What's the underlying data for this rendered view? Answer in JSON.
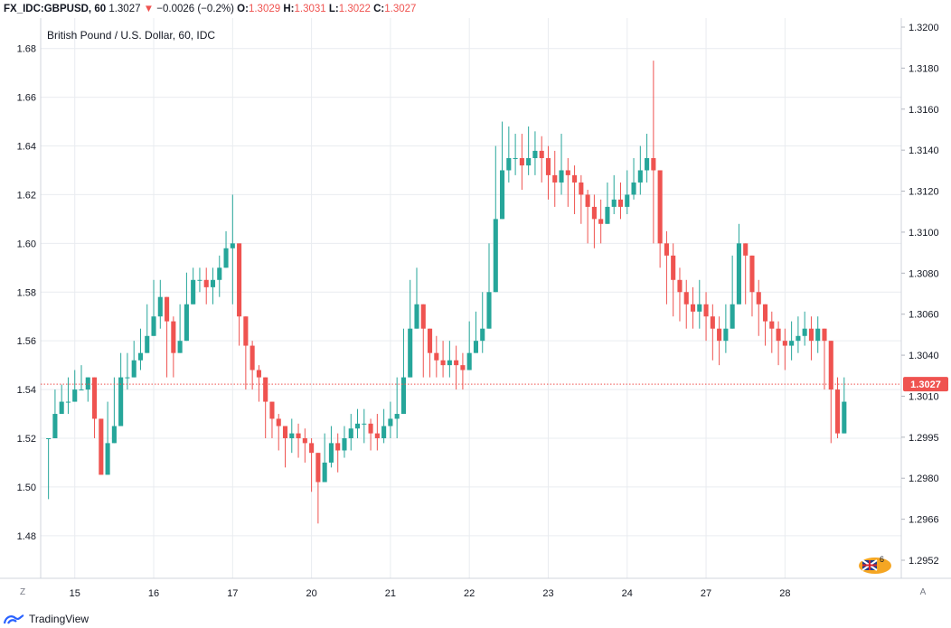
{
  "header": {
    "symbol": "FX_IDC:GBPUSD, 60",
    "last": "1.3027",
    "change": "−0.0026 (−0.2%)",
    "o_label": "O:",
    "o": "1.3029",
    "h_label": "H:",
    "h": "1.3031",
    "l_label": "L:",
    "l": "1.3022",
    "c_label": "C:",
    "c": "1.3027",
    "arrow_icon": "triangle-down"
  },
  "footer": {
    "brand": "TradingView",
    "logo_icon": "tradingview-logo"
  },
  "buttons": {
    "zoom_label": "Z",
    "auto_label": "A"
  },
  "badge": {
    "count": "6",
    "flag_icon": "uk-flag"
  },
  "colors": {
    "up": "#26a69a",
    "down": "#ef5350",
    "grid": "#e9ecf0",
    "price_line": "#ef5350"
  },
  "chart_data": {
    "type": "candlestick",
    "title": "British Pound / U.S. Dollar, 60, IDC",
    "x_ticks": [
      "15",
      "16",
      "17",
      "20",
      "21",
      "22",
      "23",
      "24",
      "27",
      "28"
    ],
    "right_axis": {
      "ticks": [
        "1.3200",
        "1.3180",
        "1.3160",
        "1.3140",
        "1.3120",
        "1.3100",
        "1.3080",
        "1.3060",
        "1.3040",
        "1.3010",
        "1.2995",
        "1.2980",
        "1.2966",
        "1.2952"
      ],
      "last_price": "1.3027"
    },
    "left_axis": {
      "ticks": [
        "1.68",
        "1.66",
        "1.64",
        "1.62",
        "1.60",
        "1.58",
        "1.56",
        "1.54",
        "1.52",
        "1.50",
        "1.48"
      ],
      "range": [
        1.4625,
        1.6925
      ]
    },
    "price_line": 1.5422,
    "series_key": [
      "day_tick",
      "open",
      "high",
      "low",
      "close"
    ],
    "days": [
      {
        "t": 0,
        "p": [
          [
            1.52,
            1.52,
            1.495
          ],
          [
            1.53,
            1.54,
            1.52
          ],
          [
            1.535,
            1.542,
            1.53
          ],
          [
            1.535,
            1.545,
            1.53
          ],
          [
            1.54,
            1.548,
            1.535
          ],
          [
            1.54,
            1.55,
            1.54
          ],
          [
            1.545,
            1.545,
            1.535
          ],
          [
            1.528,
            1.53,
            1.52
          ],
          [
            1.505,
            1.52,
            1.505
          ],
          [
            1.518,
            1.535,
            1.515
          ],
          [
            1.525,
            1.545,
            1.52
          ],
          [
            1.545,
            1.555,
            1.54
          ]
        ]
      },
      {
        "t": 1,
        "p": [
          [
            1.545,
            1.555,
            1.54
          ],
          [
            1.552,
            1.56,
            1.545
          ],
          [
            1.555,
            1.565,
            1.548
          ],
          [
            1.562,
            1.575,
            1.555
          ],
          [
            1.57,
            1.585,
            1.565
          ],
          [
            1.578,
            1.585,
            1.565
          ],
          [
            1.568,
            1.575,
            1.545
          ],
          [
            1.555,
            1.57,
            1.545
          ],
          [
            1.56,
            1.575,
            1.555
          ],
          [
            1.575,
            1.588,
            1.57
          ],
          [
            1.585,
            1.59,
            1.575
          ],
          [
            1.585,
            1.59,
            1.58
          ]
        ]
      },
      {
        "t": 2,
        "p": [
          [
            1.582,
            1.59,
            1.575
          ],
          [
            1.585,
            1.59,
            1.575
          ],
          [
            1.59,
            1.595,
            1.578
          ],
          [
            1.598,
            1.605,
            1.59
          ],
          [
            1.6,
            1.62,
            1.575
          ],
          [
            1.57,
            1.575,
            1.558
          ],
          [
            1.558,
            1.565,
            1.54
          ],
          [
            1.548,
            1.56,
            1.54
          ],
          [
            1.545,
            1.55,
            1.535
          ],
          [
            1.535,
            1.545,
            1.52
          ],
          [
            1.528,
            1.535,
            1.52
          ],
          [
            1.525,
            1.53,
            1.515
          ]
        ]
      },
      {
        "t": 3,
        "p": [
          [
            1.52,
            1.525,
            1.508
          ],
          [
            1.522,
            1.528,
            1.514
          ],
          [
            1.52,
            1.526,
            1.512
          ],
          [
            1.518,
            1.524,
            1.51
          ],
          [
            1.514,
            1.52,
            1.498
          ],
          [
            1.502,
            1.51,
            1.485
          ],
          [
            1.51,
            1.522,
            1.502
          ],
          [
            1.518,
            1.525,
            1.508
          ],
          [
            1.515,
            1.522,
            1.506
          ],
          [
            1.52,
            1.525,
            1.512
          ],
          [
            1.524,
            1.53,
            1.515
          ],
          [
            1.526,
            1.532,
            1.52
          ]
        ]
      },
      {
        "t": 4,
        "p": [
          [
            1.526,
            1.532,
            1.518
          ],
          [
            1.522,
            1.528,
            1.515
          ],
          [
            1.52,
            1.53,
            1.515
          ],
          [
            1.525,
            1.532,
            1.518
          ],
          [
            1.528,
            1.535,
            1.52
          ],
          [
            1.53,
            1.545,
            1.52
          ],
          [
            1.545,
            1.565,
            1.54
          ],
          [
            1.565,
            1.585,
            1.56
          ],
          [
            1.575,
            1.59,
            1.565
          ],
          [
            1.565,
            1.575,
            1.545
          ],
          [
            1.555,
            1.565,
            1.545
          ],
          [
            1.552,
            1.562,
            1.545
          ]
        ]
      },
      {
        "t": 5,
        "p": [
          [
            1.55,
            1.56,
            1.545
          ],
          [
            1.552,
            1.56,
            1.545
          ],
          [
            1.55,
            1.558,
            1.54
          ],
          [
            1.548,
            1.555,
            1.54
          ],
          [
            1.555,
            1.568,
            1.55
          ],
          [
            1.56,
            1.572,
            1.555
          ],
          [
            1.565,
            1.58,
            1.555
          ],
          [
            1.58,
            1.6,
            1.572
          ],
          [
            1.61,
            1.64,
            1.6
          ],
          [
            1.63,
            1.65,
            1.62
          ],
          [
            1.635,
            1.648,
            1.625
          ],
          [
            1.635,
            1.645,
            1.628
          ]
        ]
      },
      {
        "t": 6,
        "p": [
          [
            1.632,
            1.645,
            1.622
          ],
          [
            1.635,
            1.648,
            1.628
          ],
          [
            1.638,
            1.646,
            1.628
          ],
          [
            1.635,
            1.644,
            1.625
          ],
          [
            1.628,
            1.64,
            1.618
          ],
          [
            1.625,
            1.638,
            1.615
          ],
          [
            1.63,
            1.645,
            1.62
          ],
          [
            1.628,
            1.635,
            1.615
          ],
          [
            1.625,
            1.632,
            1.612
          ],
          [
            1.62,
            1.628,
            1.608
          ],
          [
            1.615,
            1.622,
            1.6
          ],
          [
            1.61,
            1.62,
            1.598
          ]
        ]
      },
      {
        "t": 7,
        "p": [
          [
            1.608,
            1.618,
            1.6
          ],
          [
            1.615,
            1.625,
            1.61
          ],
          [
            1.618,
            1.628,
            1.612
          ],
          [
            1.615,
            1.625,
            1.61
          ],
          [
            1.62,
            1.63,
            1.612
          ],
          [
            1.625,
            1.635,
            1.618
          ],
          [
            1.63,
            1.64,
            1.62
          ],
          [
            1.635,
            1.645,
            1.625
          ],
          [
            1.63,
            1.675,
            1.6
          ],
          [
            1.6,
            1.61,
            1.59
          ],
          [
            1.595,
            1.605,
            1.575
          ],
          [
            1.585,
            1.6,
            1.57
          ]
        ]
      },
      {
        "t": 8,
        "p": [
          [
            1.58,
            1.59,
            1.568
          ],
          [
            1.575,
            1.585,
            1.565
          ],
          [
            1.572,
            1.582,
            1.565
          ],
          [
            1.575,
            1.585,
            1.565
          ],
          [
            1.57,
            1.58,
            1.56
          ],
          [
            1.565,
            1.575,
            1.552
          ],
          [
            1.56,
            1.57,
            1.55
          ],
          [
            1.565,
            1.575,
            1.555
          ],
          [
            1.575,
            1.595,
            1.565
          ],
          [
            1.6,
            1.608,
            1.585
          ],
          [
            1.595,
            1.6,
            1.575
          ],
          [
            1.58,
            1.59,
            1.57
          ]
        ]
      },
      {
        "t": 9,
        "p": [
          [
            1.575,
            1.585,
            1.562
          ],
          [
            1.568,
            1.575,
            1.558
          ],
          [
            1.565,
            1.572,
            1.555
          ],
          [
            1.56,
            1.568,
            1.55
          ],
          [
            1.558,
            1.565,
            1.548
          ],
          [
            1.56,
            1.568,
            1.552
          ],
          [
            1.562,
            1.57,
            1.555
          ],
          [
            1.565,
            1.572,
            1.558
          ],
          [
            1.56,
            1.57,
            1.552
          ],
          [
            1.565,
            1.57,
            1.555
          ],
          [
            1.56,
            1.565,
            1.54
          ],
          [
            1.54,
            1.548,
            1.518
          ],
          [
            1.522,
            1.545,
            1.52
          ],
          [
            1.535,
            1.545,
            1.53
          ]
        ]
      }
    ],
    "day_x_ticks": [
      0,
      1,
      2,
      3,
      4,
      5,
      6,
      7,
      8,
      9
    ]
  }
}
